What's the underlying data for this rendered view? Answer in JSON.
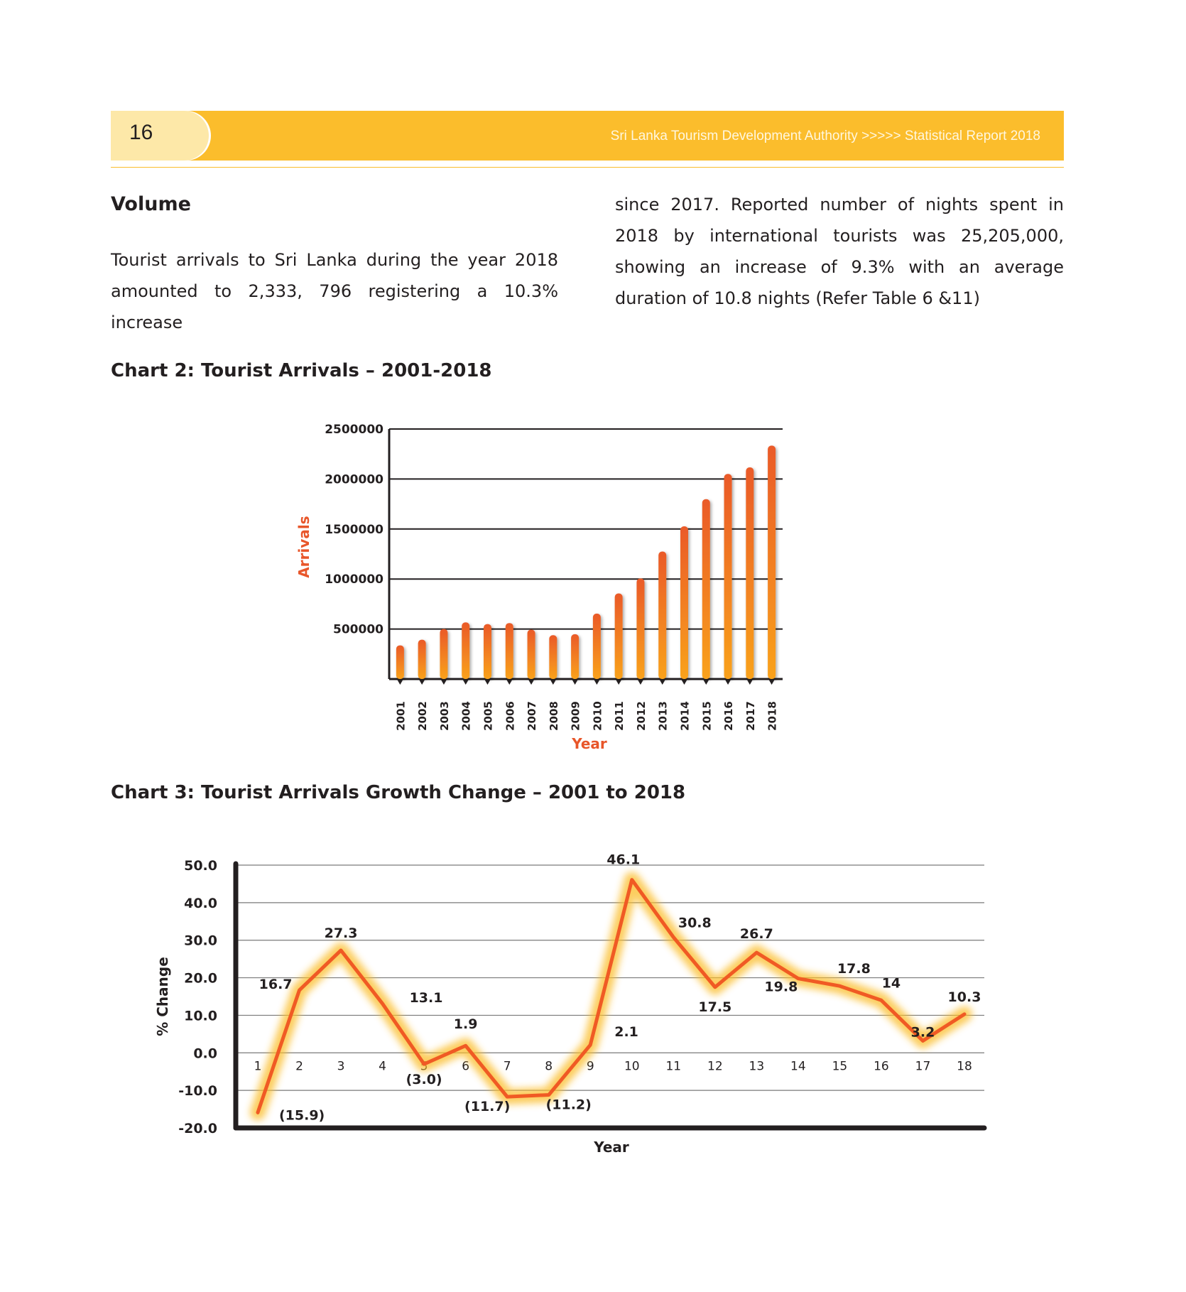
{
  "header": {
    "page_number": "16",
    "title": "Sri Lanka Tourism Development Authority >>>>> Statistical Report 2018"
  },
  "section": {
    "heading": "Volume",
    "para_left": "Tourist arrivals to Sri Lanka during the year 2018 amounted to 2,333, 796 registering a 10.3% increase",
    "para_right": "since 2017. Reported number of nights spent in 2018 by international tourists was 25,205,000, showing an increase of 9.3% with an average duration of 10.8 nights (Refer Table 6 &11)"
  },
  "colors": {
    "header": "#fbbd2c",
    "tab": "#fde8a8",
    "bar_top": "#ea5a29",
    "bar_bottom": "#f9a21c",
    "line": "#f05a24",
    "glow": "#fbbd2c",
    "axis_label": "#e8562a"
  },
  "chart_data": [
    {
      "type": "bar",
      "title": "Chart 2: Tourist Arrivals – 2001-2018",
      "xlabel": "Year",
      "ylabel": "Arrivals",
      "ylim": [
        0,
        2500000
      ],
      "yticks": [
        "500000",
        "1000000",
        "1500000",
        "2000000",
        "2500000"
      ],
      "categories": [
        "2001",
        "2002",
        "2003",
        "2004",
        "2005",
        "2006",
        "2007",
        "2008",
        "2009",
        "2010",
        "2011",
        "2012",
        "2013",
        "2014",
        "2015",
        "2016",
        "2017",
        "2018"
      ],
      "values": [
        336794,
        393171,
        500642,
        566202,
        549308,
        559603,
        494008,
        438475,
        447890,
        654476,
        855975,
        1005605,
        1274593,
        1527153,
        1798380,
        2050832,
        2116407,
        2333796
      ],
      "grid": true
    },
    {
      "type": "line",
      "title": "Chart 3: Tourist Arrivals Growth Change – 2001 to 2018",
      "xlabel": "Year",
      "ylabel": "% Change",
      "ylim": [
        -20,
        50
      ],
      "yticks": [
        "-20.0",
        "-10.0",
        "0.0",
        "10.0",
        "20.0",
        "30.0",
        "40.0",
        "50.0"
      ],
      "x": [
        "1",
        "2",
        "3",
        "4",
        "5",
        "6",
        "7",
        "8",
        "9",
        "10",
        "11",
        "12",
        "13",
        "14",
        "15",
        "16",
        "17",
        "18"
      ],
      "values": [
        -15.9,
        16.7,
        27.3,
        13.1,
        -3.0,
        1.9,
        -11.7,
        -11.2,
        2.1,
        46.1,
        30.8,
        17.5,
        26.7,
        19.8,
        17.8,
        14,
        3.2,
        10.3
      ],
      "data_labels": [
        "(15.9)",
        "16.7",
        "27.3",
        "13.1",
        "(3.0)",
        "1.9",
        "(11.7)",
        "(11.2)",
        "2.1",
        "46.1",
        "30.8",
        "17.5",
        "26.7",
        "19.8",
        "17.8",
        "14",
        "3.2",
        "10.3"
      ],
      "grid": true
    }
  ]
}
